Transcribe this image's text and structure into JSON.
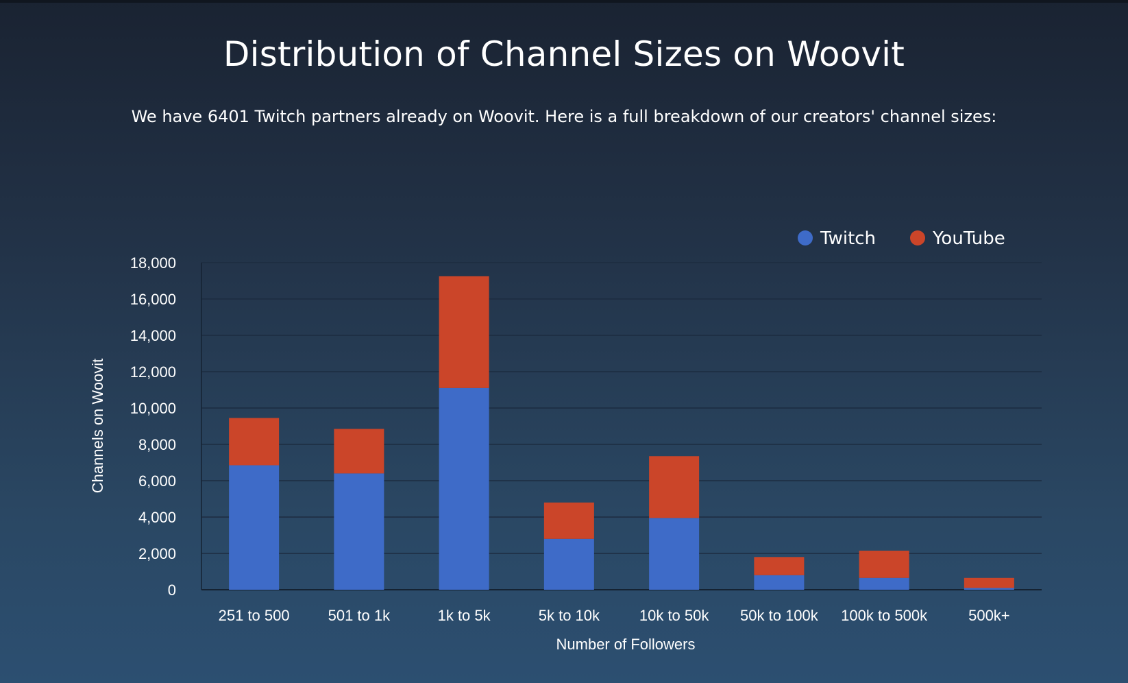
{
  "page": {
    "title": "Distribution of Channel Sizes on Woovit",
    "subtitle": "We have 6401 Twitch partners already on Woovit. Here is a full breakdown of our creators' channel sizes:"
  },
  "chart_data": {
    "type": "bar",
    "stacked": true,
    "categories": [
      "251 to 500",
      "501 to 1k",
      "1k to 5k",
      "5k to 10k",
      "10k to 50k",
      "50k to 100k",
      "100k to 500k",
      "500k+"
    ],
    "series": [
      {
        "name": "Twitch",
        "color": "#3e6bc8",
        "values": [
          6850,
          6400,
          11100,
          2800,
          3950,
          800,
          650,
          100
        ]
      },
      {
        "name": "YouTube",
        "color": "#cb4529",
        "values": [
          2600,
          2450,
          6150,
          2000,
          3400,
          1000,
          1500,
          550
        ]
      }
    ],
    "xlabel": "Number of Followers",
    "ylabel": "Channels on Woovit",
    "ylim": [
      0,
      18000
    ],
    "yticks": [
      0,
      2000,
      4000,
      6000,
      8000,
      10000,
      12000,
      14000,
      16000,
      18000
    ],
    "ytick_labels": [
      "0",
      "2,000",
      "4,000",
      "6,000",
      "8,000",
      "10,000",
      "12,000",
      "14,000",
      "16,000",
      "18,000"
    ],
    "grid": true,
    "legend": "top-right"
  }
}
